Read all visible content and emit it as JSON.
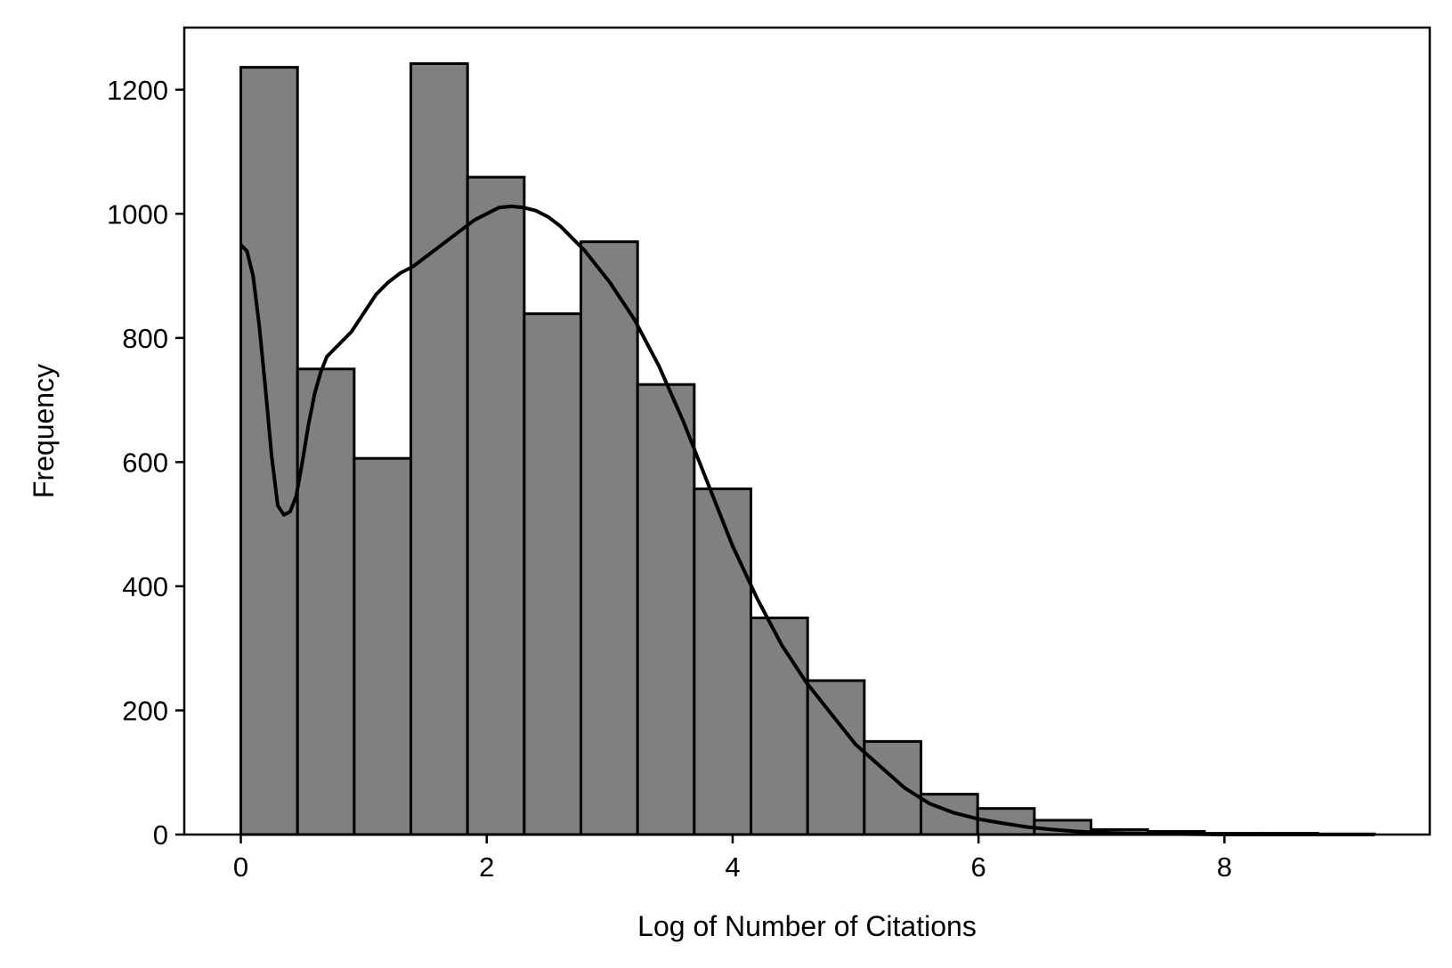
{
  "chart_data": {
    "type": "bar",
    "subtype": "histogram",
    "title": "",
    "xlabel": "Log of Number of Citations",
    "ylabel": "Frequency",
    "xlim": [
      -0.46,
      9.67
    ],
    "ylim": [
      0,
      1300
    ],
    "xticks": [
      0,
      2,
      4,
      6,
      8
    ],
    "yticks": [
      0,
      200,
      400,
      600,
      800,
      1000,
      1200
    ],
    "grid": false,
    "legend": "none",
    "bar_color": "#808080",
    "edge_color": "#000000",
    "bin_edges": [
      0,
      0.461,
      0.922,
      1.383,
      1.844,
      2.305,
      2.766,
      3.227,
      3.688,
      4.149,
      4.61,
      5.071,
      5.532,
      5.993,
      6.454,
      6.915,
      7.376,
      7.837,
      8.298,
      8.759,
      9.22
    ],
    "values": [
      1236,
      750,
      606,
      1242,
      1059,
      839,
      955,
      725,
      557,
      349,
      248,
      150,
      65,
      42,
      23,
      8,
      5,
      2,
      2,
      1
    ],
    "kde": {
      "x": [
        0,
        0.05,
        0.1,
        0.15,
        0.2,
        0.25,
        0.3,
        0.35,
        0.4,
        0.45,
        0.5,
        0.55,
        0.6,
        0.65,
        0.7,
        0.8,
        0.9,
        1.0,
        1.1,
        1.2,
        1.3,
        1.4,
        1.5,
        1.6,
        1.7,
        1.8,
        1.9,
        2.0,
        2.1,
        2.2,
        2.3,
        2.4,
        2.5,
        2.6,
        2.8,
        3.0,
        3.2,
        3.4,
        3.6,
        3.8,
        4.0,
        4.2,
        4.4,
        4.6,
        4.8,
        5.0,
        5.2,
        5.4,
        5.6,
        5.8,
        6.0,
        6.2,
        6.4,
        6.6,
        6.8,
        7.0,
        7.2,
        7.5,
        8.0,
        8.5,
        9.22
      ],
      "y": [
        950,
        940,
        900,
        820,
        720,
        610,
        530,
        515,
        520,
        545,
        600,
        660,
        710,
        745,
        770,
        790,
        810,
        840,
        870,
        890,
        905,
        915,
        930,
        945,
        960,
        975,
        990,
        1000,
        1010,
        1012,
        1010,
        1005,
        995,
        980,
        940,
        890,
        830,
        755,
        665,
        565,
        465,
        380,
        305,
        245,
        195,
        145,
        110,
        75,
        50,
        35,
        25,
        18,
        12,
        8,
        5,
        3,
        2,
        1,
        0,
        0,
        0
      ]
    }
  }
}
